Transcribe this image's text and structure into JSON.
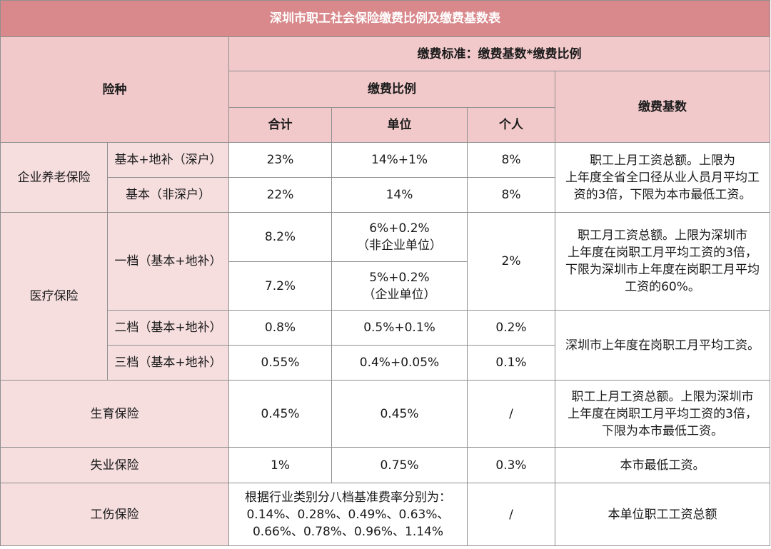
{
  "title": "深圳市职工社会保险缴费比例及缴费基数表",
  "headers": {
    "insurance_type": "险种",
    "standard": "缴费标准：缴费基数*缴费比例",
    "ratio": "缴费比例",
    "base": "缴费基数",
    "total": "合计",
    "employer": "单位",
    "individual": "个人"
  },
  "pension": {
    "name": "企业养老保险",
    "rows": [
      {
        "sub": "基本+地补（深户）",
        "total": "23%",
        "employer": "14%+1%",
        "individual": "8%"
      },
      {
        "sub": "基本（非深户）",
        "total": "22%",
        "employer": "14%",
        "individual": "8%"
      }
    ],
    "base_lines": [
      "职工上月工资总额。上限为",
      "上年度全省全口径从业人员月平均工",
      "资的3倍，下限为本市最低工资。"
    ]
  },
  "medical": {
    "name": "医疗保险",
    "tier1": {
      "sub": "一档（基本+地补）",
      "rows": [
        {
          "total": "8.2%",
          "employer_line1": "6%+0.2%",
          "employer_line2": "（非企业单位）"
        },
        {
          "total": "7.2%",
          "employer_line1": "5%+0.2%",
          "employer_line2": "（企业单位）"
        }
      ],
      "individual": "2%",
      "base_lines": [
        "职工月工资总额。上限为深圳市",
        "上年度在岗职工月平均工资的3倍，",
        "下限为深圳市上年度在岗职工月平均",
        "工资的60%。"
      ]
    },
    "tier2": {
      "sub": "二档（基本+地补）",
      "total": "0.8%",
      "employer": "0.5%+0.1%",
      "individual": "0.2%"
    },
    "tier3": {
      "sub": "三档（基本+地补）",
      "total": "0.55%",
      "employer": "0.4%+0.05%",
      "individual": "0.1%"
    },
    "tier23_base": "深圳市上年度在岗职工月平均工资。"
  },
  "maternity": {
    "name": "生育保险",
    "total": "0.45%",
    "employer": "0.45%",
    "individual": "/",
    "base_lines": [
      "职工上月工资总额。上限为深圳市",
      "上年度在岗职工月平均工资的3倍，",
      "下限为本市最低工资。"
    ]
  },
  "unemployment": {
    "name": "失业保险",
    "total": "1%",
    "employer": "0.75%",
    "individual": "0.3%",
    "base": "本市最低工资。"
  },
  "injury": {
    "name": "工伤保险",
    "rate_lines": [
      "根据行业类别分八档基准费率分别为：",
      "0.14%、0.28%、0.49%、0.63%、",
      "0.66%、0.78%、0.96%、1.14%"
    ],
    "individual": "/",
    "base": "本单位职工工资总额"
  }
}
